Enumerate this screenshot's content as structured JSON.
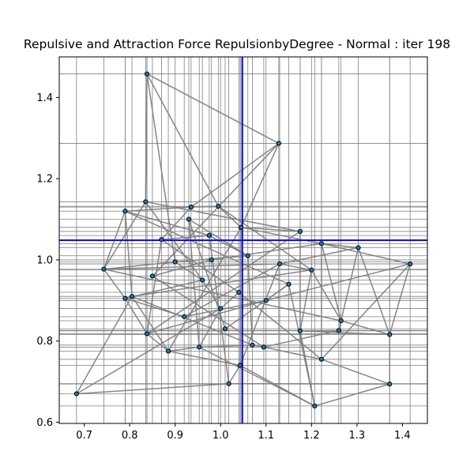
{
  "chart_data": {
    "type": "scatter",
    "title": "Repulsive and Attraction Force RepulsionbyDegree - Normal : iter 198",
    "xlabel": "",
    "ylabel": "",
    "xlim": [
      0.645,
      1.455
    ],
    "ylim": [
      0.597,
      1.5
    ],
    "xticks": [
      0.7,
      0.8,
      0.9,
      1.0,
      1.1,
      1.2,
      1.3,
      1.4
    ],
    "yticks": [
      0.6,
      0.8,
      1.0,
      1.2,
      1.4
    ],
    "xtick_labels": [
      "0.7",
      "0.8",
      "0.9",
      "1.0",
      "1.1",
      "1.2",
      "1.3",
      "1.4"
    ],
    "ytick_labels": [
      "0.6",
      "0.8",
      "1.0",
      "1.2",
      "1.4"
    ],
    "grid": true,
    "crosshair": {
      "x": 1.048,
      "y": 1.048
    },
    "colors": {
      "node": "#1f77b4",
      "edge": "#808080",
      "grid": "#808080",
      "crosshair": "#0000ff"
    },
    "nodes": [
      {
        "x": 0.838,
        "y": 1.458
      },
      {
        "x": 1.128,
        "y": 1.287
      },
      {
        "x": 0.683,
        "y": 0.67
      },
      {
        "x": 1.372,
        "y": 0.694
      },
      {
        "x": 1.417,
        "y": 0.99
      },
      {
        "x": 1.372,
        "y": 0.816
      },
      {
        "x": 1.303,
        "y": 1.03
      },
      {
        "x": 1.207,
        "y": 0.64
      },
      {
        "x": 1.222,
        "y": 0.755
      },
      {
        "x": 1.018,
        "y": 0.695
      },
      {
        "x": 1.043,
        "y": 0.74
      },
      {
        "x": 0.743,
        "y": 0.977
      },
      {
        "x": 0.79,
        "y": 1.12
      },
      {
        "x": 0.835,
        "y": 1.143
      },
      {
        "x": 0.935,
        "y": 1.13
      },
      {
        "x": 0.995,
        "y": 1.132
      },
      {
        "x": 1.045,
        "y": 1.08
      },
      {
        "x": 1.175,
        "y": 1.07
      },
      {
        "x": 1.222,
        "y": 1.04
      },
      {
        "x": 0.79,
        "y": 0.905
      },
      {
        "x": 0.805,
        "y": 0.91
      },
      {
        "x": 0.838,
        "y": 0.818
      },
      {
        "x": 0.885,
        "y": 0.775
      },
      {
        "x": 0.953,
        "y": 0.785
      },
      {
        "x": 1.07,
        "y": 0.79
      },
      {
        "x": 1.095,
        "y": 0.785
      },
      {
        "x": 1.175,
        "y": 0.825
      },
      {
        "x": 1.26,
        "y": 0.826
      },
      {
        "x": 1.265,
        "y": 0.85
      },
      {
        "x": 1.13,
        "y": 0.99
      },
      {
        "x": 1.2,
        "y": 0.975
      },
      {
        "x": 0.9,
        "y": 0.995
      },
      {
        "x": 0.96,
        "y": 0.95
      },
      {
        "x": 1.0,
        "y": 0.88
      },
      {
        "x": 1.04,
        "y": 0.92
      },
      {
        "x": 0.87,
        "y": 1.05
      },
      {
        "x": 0.975,
        "y": 1.06
      },
      {
        "x": 0.92,
        "y": 0.86
      },
      {
        "x": 1.1,
        "y": 0.9
      },
      {
        "x": 0.98,
        "y": 1.0
      },
      {
        "x": 0.85,
        "y": 0.96
      },
      {
        "x": 1.06,
        "y": 1.01
      },
      {
        "x": 0.93,
        "y": 1.1
      },
      {
        "x": 1.01,
        "y": 0.83
      },
      {
        "x": 1.15,
        "y": 0.94
      }
    ],
    "edges": [
      [
        0,
        1
      ],
      [
        0,
        13
      ],
      [
        0,
        15
      ],
      [
        0,
        31
      ],
      [
        1,
        16
      ],
      [
        1,
        14
      ],
      [
        1,
        40
      ],
      [
        2,
        9
      ],
      [
        2,
        20
      ],
      [
        2,
        33
      ],
      [
        9,
        3
      ],
      [
        9,
        10
      ],
      [
        3,
        8
      ],
      [
        3,
        5
      ],
      [
        3,
        7
      ],
      [
        4,
        5
      ],
      [
        4,
        8
      ],
      [
        4,
        18
      ],
      [
        4,
        38
      ],
      [
        5,
        28
      ],
      [
        5,
        6
      ],
      [
        5,
        26
      ],
      [
        6,
        18
      ],
      [
        6,
        29
      ],
      [
        6,
        27
      ],
      [
        7,
        10
      ],
      [
        7,
        26
      ],
      [
        7,
        23
      ],
      [
        7,
        44
      ],
      [
        8,
        25
      ],
      [
        8,
        34
      ],
      [
        8,
        18
      ],
      [
        10,
        22
      ],
      [
        10,
        29
      ],
      [
        10,
        16
      ],
      [
        11,
        12
      ],
      [
        11,
        19
      ],
      [
        11,
        13
      ],
      [
        11,
        29
      ],
      [
        11,
        31
      ],
      [
        12,
        20
      ],
      [
        12,
        14
      ],
      [
        12,
        36
      ],
      [
        13,
        17
      ],
      [
        13,
        32
      ],
      [
        14,
        15
      ],
      [
        14,
        35
      ],
      [
        15,
        16
      ],
      [
        15,
        30
      ],
      [
        16,
        17
      ],
      [
        16,
        18
      ],
      [
        17,
        26
      ],
      [
        17,
        21
      ],
      [
        18,
        28
      ],
      [
        18,
        39
      ],
      [
        19,
        21
      ],
      [
        19,
        32
      ],
      [
        20,
        22
      ],
      [
        20,
        24
      ],
      [
        21,
        22
      ],
      [
        21,
        38
      ],
      [
        22,
        23
      ],
      [
        22,
        16
      ],
      [
        23,
        24
      ],
      [
        23,
        33
      ],
      [
        24,
        25
      ],
      [
        24,
        41
      ],
      [
        25,
        27
      ],
      [
        25,
        40
      ],
      [
        26,
        27
      ],
      [
        26,
        30
      ],
      [
        27,
        28
      ],
      [
        28,
        30
      ],
      [
        29,
        30
      ],
      [
        29,
        37
      ],
      [
        31,
        32
      ],
      [
        31,
        41
      ],
      [
        32,
        33
      ],
      [
        33,
        34
      ],
      [
        34,
        35
      ],
      [
        35,
        36
      ],
      [
        36,
        41
      ],
      [
        37,
        38
      ],
      [
        38,
        44
      ],
      [
        39,
        40
      ],
      [
        41,
        42
      ],
      [
        42,
        43
      ],
      [
        43,
        44
      ],
      [
        44,
        12
      ],
      [
        37,
        19
      ],
      [
        30,
        20
      ],
      [
        28,
        11
      ],
      [
        21,
        35
      ],
      [
        23,
        42
      ],
      [
        9,
        36
      ]
    ]
  }
}
